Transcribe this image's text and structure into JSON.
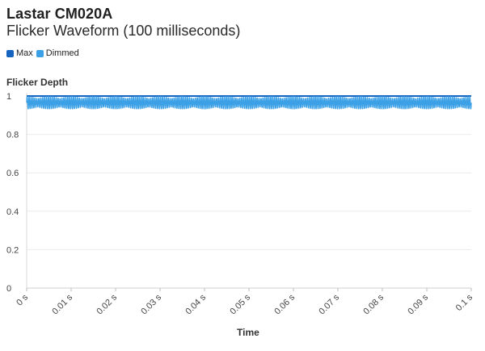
{
  "chart_data": {
    "type": "line",
    "title": "Lastar CM020A",
    "subtitle": "Flicker Waveform (100 milliseconds)",
    "ylabel": "Flicker Depth",
    "xlabel": "Time",
    "ylim": [
      0,
      1
    ],
    "xlim": [
      0,
      0.1
    ],
    "y_ticks": [
      {
        "value": 0,
        "label": "0"
      },
      {
        "value": 0.2,
        "label": "0.2"
      },
      {
        "value": 0.4,
        "label": "0.4"
      },
      {
        "value": 0.6,
        "label": "0.6"
      },
      {
        "value": 0.8,
        "label": "0.8"
      },
      {
        "value": 1,
        "label": "1"
      }
    ],
    "x_ticks": [
      {
        "value": 0,
        "label": "0 s"
      },
      {
        "value": 0.01,
        "label": "0.01 s"
      },
      {
        "value": 0.02,
        "label": "0.02 s"
      },
      {
        "value": 0.03,
        "label": "0.03 s"
      },
      {
        "value": 0.04,
        "label": "0.04 s"
      },
      {
        "value": 0.05,
        "label": "0.05 s"
      },
      {
        "value": 0.06,
        "label": "0.06 s"
      },
      {
        "value": 0.07,
        "label": "0.07 s"
      },
      {
        "value": 0.08,
        "label": "0.08 s"
      },
      {
        "value": 0.09,
        "label": "0.09 s"
      },
      {
        "value": 0.1,
        "label": "0.1 s"
      }
    ],
    "legend_position": "top-left",
    "grid": true,
    "series": [
      {
        "name": "Max",
        "color": "#1565c0",
        "x_range": [
          0,
          0.1
        ],
        "constant_value": 1.0
      },
      {
        "name": "Dimmed",
        "color": "#3ba0e6",
        "x_range": [
          0,
          0.1
        ],
        "waveform": {
          "mean": 0.965,
          "amplitude": 0.032,
          "carrier_cycles": 230,
          "envelope_cycles": 20,
          "envelope_min": 0.35
        }
      }
    ]
  }
}
